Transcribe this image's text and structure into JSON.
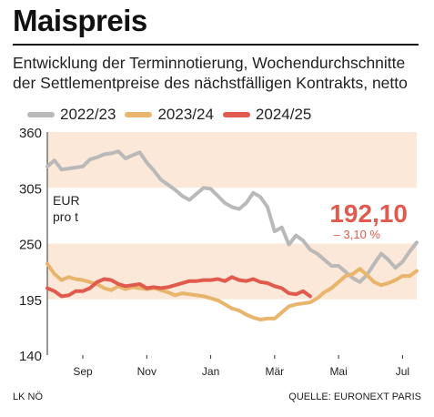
{
  "title": "Maispreis",
  "subtitle_line1": "Entwicklung der Terminnotierung, Wochendurchschnitte",
  "subtitle_line2": "der Settlementpreise des nächstfälligen Kontrakts, netto",
  "unit_line1": "EUR",
  "unit_line2": "pro t",
  "highlight_value": "192,10",
  "highlight_change": "– 3,10 %",
  "footer_left": "LK NÖ",
  "footer_right": "QUELLE: EURONEXT PARIS",
  "colors": {
    "series_2022_23": "#b9b9b9",
    "series_2023_24": "#e9b46c",
    "series_2024_25": "#e05a4e",
    "band": "#fbe8d8",
    "highlight": "#e05a4e"
  },
  "chart_data": {
    "type": "line",
    "title": "Maispreis",
    "ylabel": "EUR pro t",
    "ylim": [
      140,
      360
    ],
    "yticks": [
      140,
      195,
      250,
      305,
      360
    ],
    "ytick_labels": [
      "140",
      "195",
      "250",
      "305",
      "360"
    ],
    "xtick_labels": [
      "Sep",
      "Nov",
      "Jan",
      "Mär",
      "Mai",
      "Jul"
    ],
    "xtick_positions": [
      5,
      14,
      23,
      32,
      41,
      50
    ],
    "x_unit": "weeks since start of August",
    "bands": [
      [
        195,
        250
      ],
      [
        305,
        360
      ]
    ],
    "grid": false,
    "legend_position": "top",
    "series": [
      {
        "name": "2022/23",
        "values": [
          326,
          332,
          323,
          324,
          325,
          326,
          333,
          335,
          338,
          339,
          341,
          334,
          337,
          340,
          330,
          322,
          313,
          308,
          303,
          297,
          293,
          299,
          305,
          304,
          297,
          290,
          286,
          284,
          290,
          300,
          296,
          286,
          262,
          266,
          249,
          258,
          253,
          244,
          240,
          234,
          228,
          228,
          222,
          216,
          212,
          219,
          230,
          240,
          234,
          226,
          232,
          242,
          251
        ]
      },
      {
        "name": "2023/24",
        "values": [
          230,
          220,
          214,
          217,
          215,
          214,
          212,
          210,
          206,
          204,
          208,
          205,
          207,
          206,
          205,
          206,
          204,
          202,
          199,
          201,
          200,
          199,
          198,
          196,
          194,
          190,
          186,
          184,
          180,
          177,
          175,
          176,
          176,
          182,
          188,
          190,
          191,
          192,
          196,
          202,
          206,
          212,
          218,
          220,
          225,
          219,
          212,
          209,
          211,
          214,
          218,
          218,
          223
        ]
      },
      {
        "name": "2024/25",
        "values": [
          206,
          203,
          198,
          199,
          203,
          203,
          206,
          212,
          215,
          214,
          210,
          208,
          209,
          210,
          206,
          207,
          206,
          207,
          209,
          211,
          213,
          213,
          214,
          214,
          215,
          213,
          217,
          214,
          213,
          215,
          212,
          211,
          208,
          206,
          201,
          200,
          203,
          198
        ]
      }
    ]
  }
}
